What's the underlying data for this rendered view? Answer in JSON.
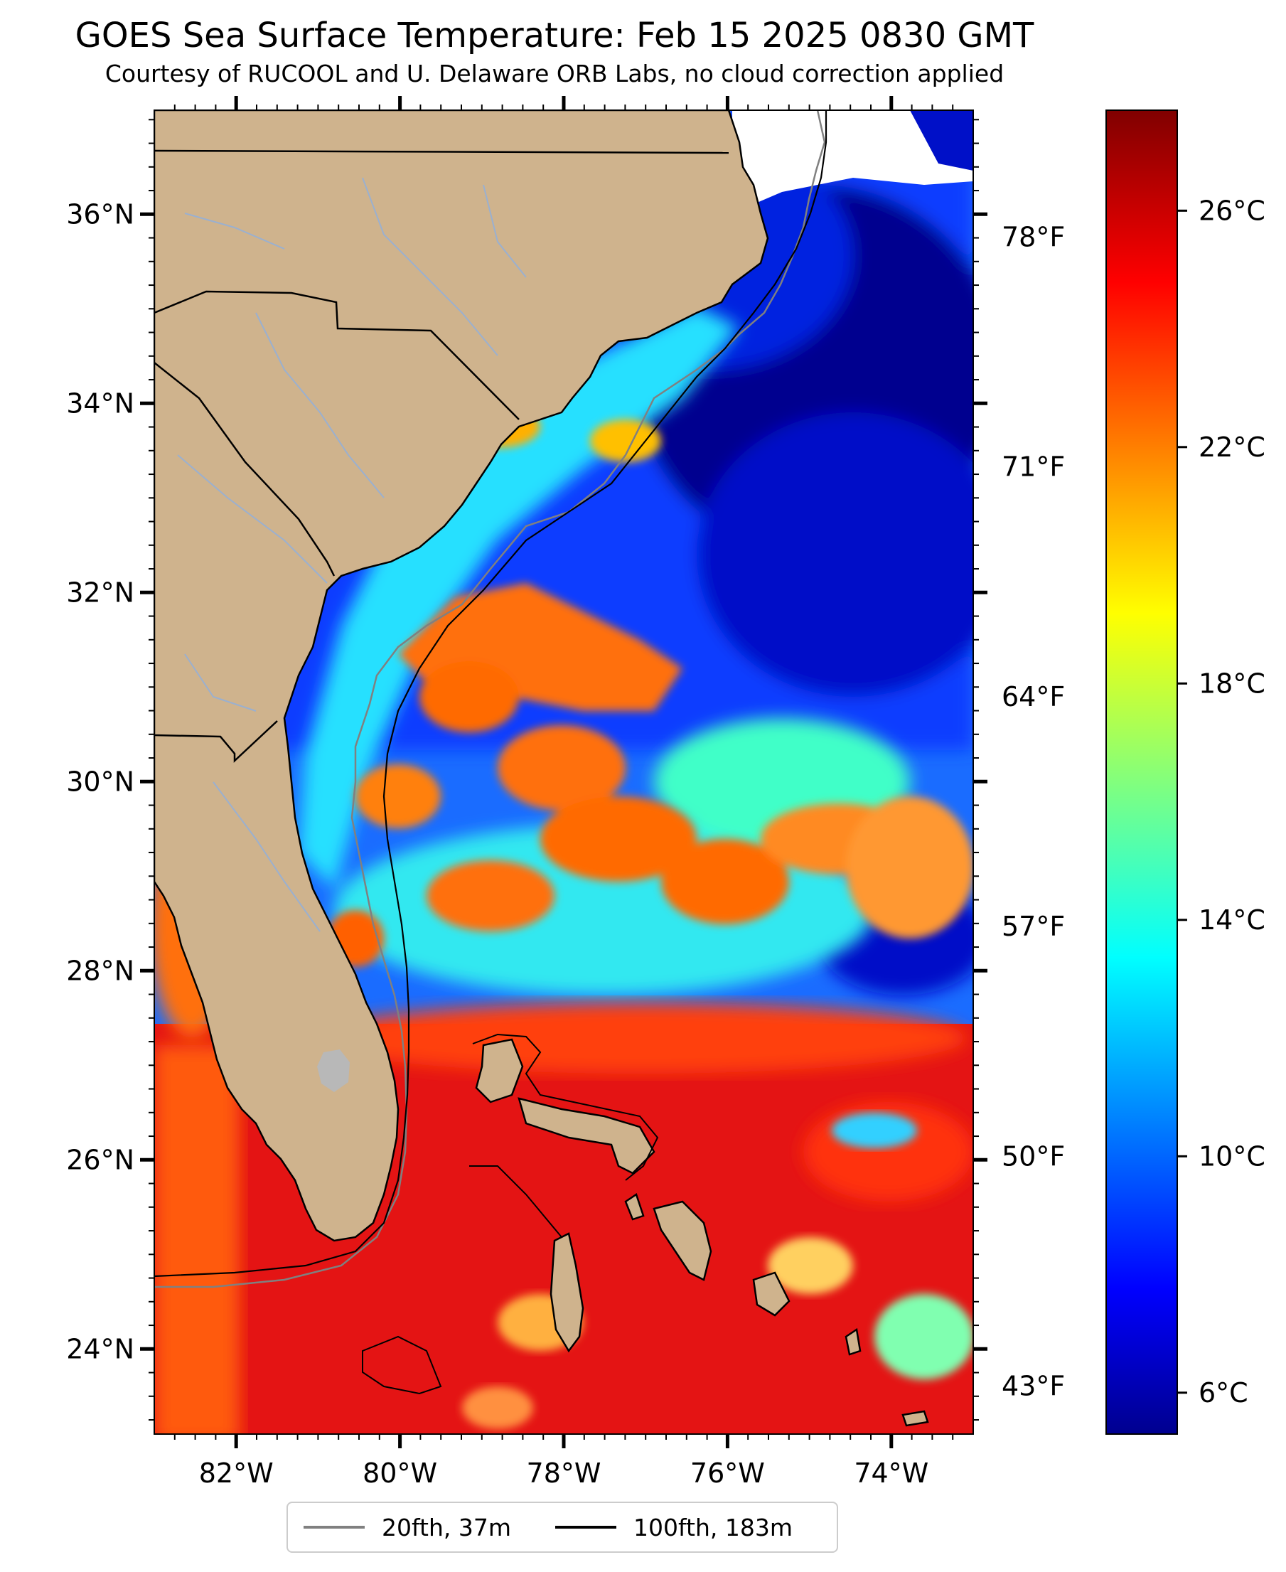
{
  "map": {
    "title": "GOES Sea Surface Temperature: Feb 15 2025 0830 GMT",
    "subtitle": "Courtesy of RUCOOL and U. Delaware ORB Labs, no cloud correction applied",
    "extent": {
      "lon": [
        -83.0,
        -73.0
      ],
      "lat": [
        23.1,
        37.1
      ]
    },
    "lat_ticks": [
      {
        "value": 24,
        "label": "24°N"
      },
      {
        "value": 26,
        "label": "26°N"
      },
      {
        "value": 28,
        "label": "28°N"
      },
      {
        "value": 30,
        "label": "30°N"
      },
      {
        "value": 32,
        "label": "32°N"
      },
      {
        "value": 34,
        "label": "34°N"
      },
      {
        "value": 36,
        "label": "36°N"
      }
    ],
    "lon_ticks": [
      {
        "value": -82,
        "label": "82°W"
      },
      {
        "value": -80,
        "label": "80°W"
      },
      {
        "value": -78,
        "label": "78°W"
      },
      {
        "value": -76,
        "label": "76°W"
      },
      {
        "value": -74,
        "label": "74°W"
      }
    ],
    "fahrenheit_ticks": [
      {
        "value": 43,
        "label": "43°F"
      },
      {
        "value": 50,
        "label": "50°F"
      },
      {
        "value": 57,
        "label": "57°F"
      },
      {
        "value": 64,
        "label": "64°F"
      },
      {
        "value": 71,
        "label": "71°F"
      },
      {
        "value": 78,
        "label": "78°F"
      }
    ],
    "colorbar": {
      "range_c": [
        5.3,
        27.7
      ],
      "ticks": [
        {
          "value": 6,
          "label": "6°C"
        },
        {
          "value": 10,
          "label": "10°C"
        },
        {
          "value": 14,
          "label": "14°C"
        },
        {
          "value": 18,
          "label": "18°C"
        },
        {
          "value": 22,
          "label": "22°C"
        },
        {
          "value": 26,
          "label": "26°C"
        }
      ],
      "colormap": "jet"
    },
    "colors": {
      "land": "#cfb38d",
      "coast": "#000000",
      "rivers": "#9ab0d0",
      "lake": "#b8b8b8"
    },
    "legend": [
      {
        "label": "20fth, 37m",
        "color": "#808080"
      },
      {
        "label": "100fth, 183m",
        "color": "#000000"
      }
    ]
  }
}
